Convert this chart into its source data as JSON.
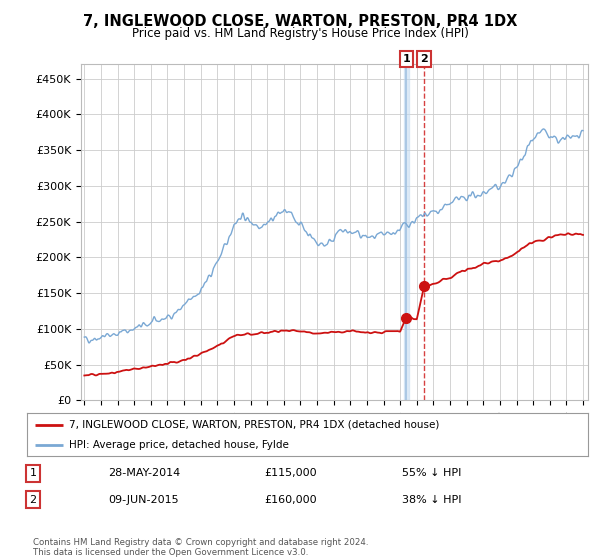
{
  "title": "7, INGLEWOOD CLOSE, WARTON, PRESTON, PR4 1DX",
  "subtitle": "Price paid vs. HM Land Registry's House Price Index (HPI)",
  "ylabel_ticks": [
    "£0",
    "£50K",
    "£100K",
    "£150K",
    "£200K",
    "£250K",
    "£300K",
    "£350K",
    "£400K",
    "£450K"
  ],
  "ytick_values": [
    0,
    50000,
    100000,
    150000,
    200000,
    250000,
    300000,
    350000,
    400000,
    450000
  ],
  "ylim": [
    0,
    470000
  ],
  "xlim_start": 1994.8,
  "xlim_end": 2025.3,
  "hpi_color": "#7aa8d4",
  "price_color": "#cc1111",
  "transaction1_date": "28-MAY-2014",
  "transaction1_price": 115000,
  "transaction1_label": "55% ↓ HPI",
  "transaction2_date": "09-JUN-2015",
  "transaction2_price": 160000,
  "transaction2_label": "38% ↓ HPI",
  "transaction1_x": 2014.38,
  "transaction2_x": 2015.44,
  "legend_line1": "7, INGLEWOOD CLOSE, WARTON, PRESTON, PR4 1DX (detached house)",
  "legend_line2": "HPI: Average price, detached house, Fylde",
  "footer": "Contains HM Land Registry data © Crown copyright and database right 2024.\nThis data is licensed under the Open Government Licence v3.0.",
  "background_color": "#ffffff",
  "grid_color": "#cccccc"
}
